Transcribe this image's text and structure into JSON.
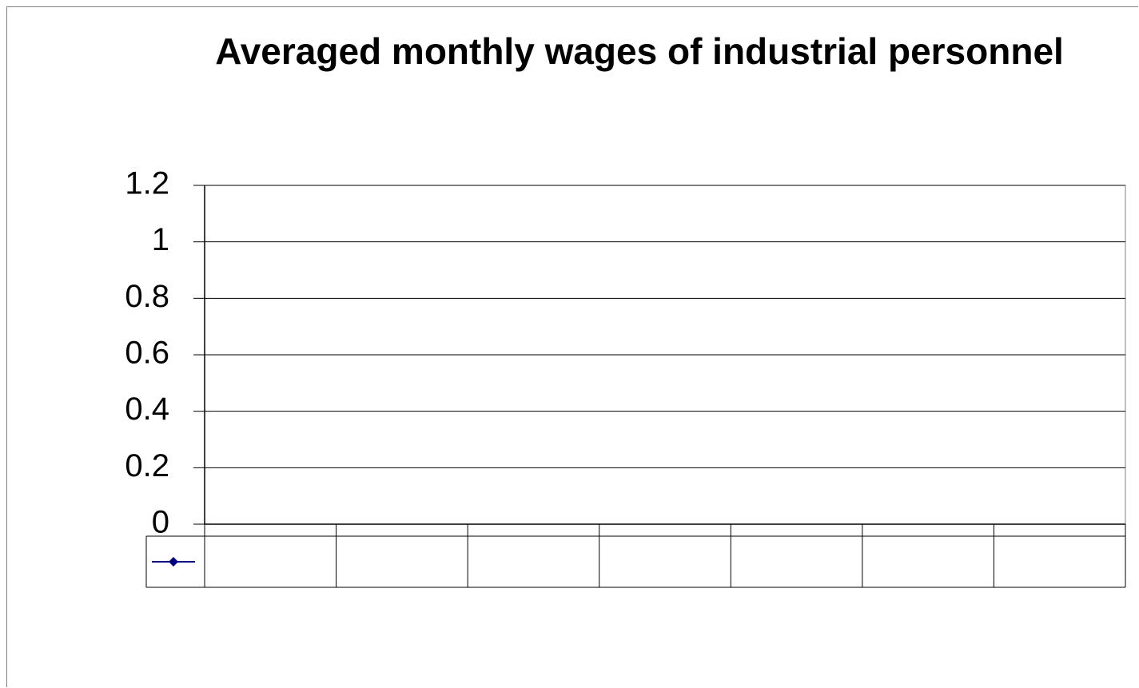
{
  "chart_data": {
    "type": "line",
    "title": "Averaged monthly wages of industrial personnel",
    "categories": [
      null,
      null,
      null,
      null,
      null,
      null,
      null
    ],
    "series": [
      {
        "color": "#000080",
        "values": [
          null,
          null,
          null,
          null,
          null,
          null,
          null
        ]
      }
    ],
    "ylim": [
      0,
      1.2
    ],
    "yticks": [
      0,
      0.2,
      0.4,
      0.6,
      0.8,
      1,
      1.2
    ],
    "grid": true
  }
}
